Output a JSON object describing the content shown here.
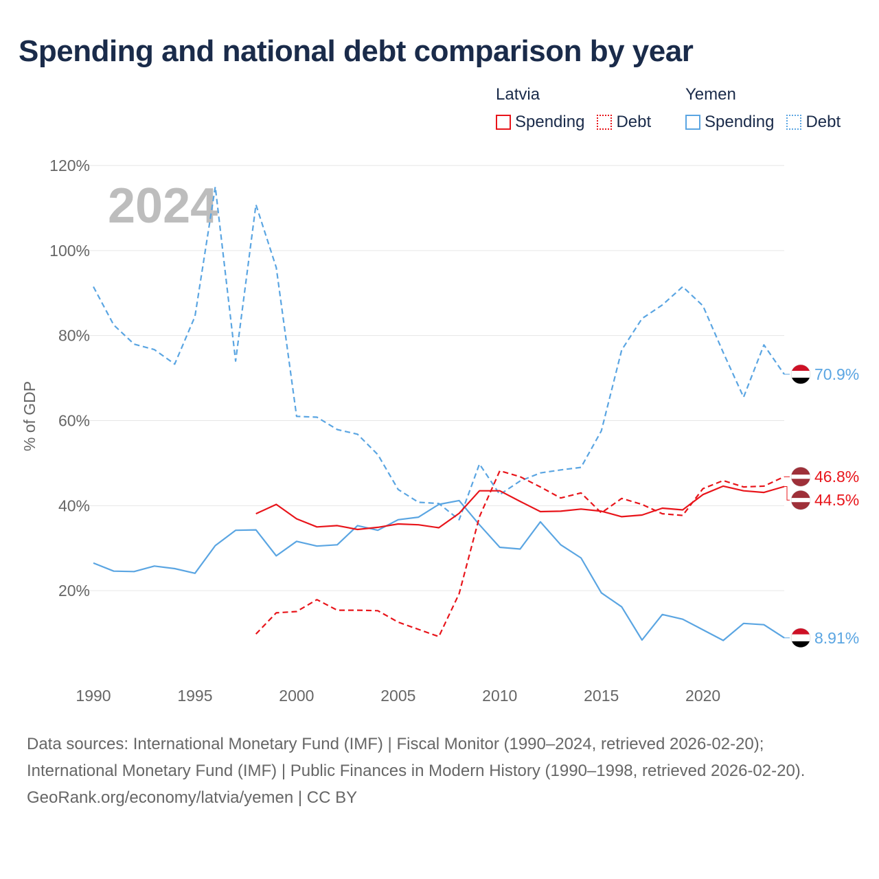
{
  "title": "Spending and national debt comparison by year",
  "legend": [
    {
      "country": "Latvia",
      "items": [
        {
          "label": "Spending",
          "style": "solid",
          "color": "#e8141a"
        },
        {
          "label": "Debt",
          "style": "dotted",
          "color": "#e8141a"
        }
      ]
    },
    {
      "country": "Yemen",
      "items": [
        {
          "label": "Spending",
          "style": "solid",
          "color": "#5aa5e2"
        },
        {
          "label": "Debt",
          "style": "dotted",
          "color": "#5aa5e2"
        }
      ]
    }
  ],
  "colors": {
    "latvia": "#e8141a",
    "yemen": "#5aa5e2",
    "grid": "#e6e6e6",
    "axis_text": "#666666",
    "year_watermark": "#bdbdbd"
  },
  "chart_data": {
    "type": "line",
    "ylabel": "% of GDP",
    "xlabel": "",
    "xlim": [
      1990,
      2024
    ],
    "ylim": [
      0,
      120
    ],
    "y_ticks": [
      20,
      40,
      60,
      80,
      100,
      120
    ],
    "y_tick_labels": [
      "20%",
      "40%",
      "60%",
      "80%",
      "100%",
      "120%"
    ],
    "x_ticks": [
      1990,
      1995,
      2000,
      2005,
      2010,
      2015,
      2020
    ],
    "x_tick_labels": [
      "1990",
      "1995",
      "2000",
      "2005",
      "2010",
      "2015",
      "2020"
    ],
    "year_label": "2024",
    "series": [
      {
        "name": "Yemen Debt",
        "country": "Yemen",
        "style": "dashed",
        "color": "#5aa5e2",
        "x": [
          1990,
          1991,
          1992,
          1993,
          1994,
          1995,
          1996,
          1997,
          1998,
          1999,
          2000,
          2001,
          2002,
          2003,
          2004,
          2005,
          2006,
          2007,
          2008,
          2009,
          2010,
          2011,
          2012,
          2013,
          2014,
          2015,
          2016,
          2017,
          2018,
          2019,
          2020,
          2021,
          2022,
          2023,
          2024
        ],
        "values": [
          91.5,
          82.5,
          78,
          76.7,
          73.3,
          84.5,
          115,
          74,
          110.8,
          96,
          61,
          60.8,
          57.9,
          56.8,
          52,
          43.8,
          40.8,
          40.5,
          36.7,
          49.8,
          42.6,
          45.8,
          47.7,
          48.4,
          49,
          57.6,
          76.6,
          84,
          87.2,
          91.5,
          87,
          76,
          65.5,
          77.8,
          70.9
        ],
        "end_label": "70.9%"
      },
      {
        "name": "Yemen Spending",
        "country": "Yemen",
        "style": "solid",
        "color": "#5aa5e2",
        "x": [
          1990,
          1991,
          1992,
          1993,
          1994,
          1995,
          1996,
          1997,
          1998,
          1999,
          2000,
          2001,
          2002,
          2003,
          2004,
          2005,
          2006,
          2007,
          2008,
          2009,
          2010,
          2011,
          2012,
          2013,
          2014,
          2015,
          2016,
          2017,
          2018,
          2019,
          2020,
          2021,
          2022,
          2023,
          2024
        ],
        "values": [
          26.5,
          24.6,
          24.5,
          25.8,
          25.2,
          24.1,
          30.6,
          34.2,
          34.3,
          28.2,
          31.6,
          30.5,
          30.8,
          35.3,
          34.2,
          36.7,
          37.3,
          40.3,
          41.2,
          35.5,
          30.2,
          29.8,
          36.2,
          30.8,
          27.7,
          19.5,
          16.2,
          8.4,
          14.4,
          13.3,
          10.8,
          8.3,
          12.3,
          12,
          8.91
        ],
        "end_label": "8.91%"
      },
      {
        "name": "Latvia Debt",
        "country": "Latvia",
        "style": "dashed",
        "color": "#e8141a",
        "x": [
          1998,
          1999,
          2000,
          2001,
          2002,
          2003,
          2004,
          2005,
          2006,
          2007,
          2008,
          2009,
          2010,
          2011,
          2012,
          2013,
          2014,
          2015,
          2016,
          2017,
          2018,
          2019,
          2020,
          2021,
          2022,
          2023,
          2024
        ],
        "values": [
          9.8,
          14.8,
          15.1,
          17.9,
          15.4,
          15.4,
          15.3,
          12.6,
          10.9,
          9.2,
          19.3,
          37.4,
          48.2,
          46.8,
          44.4,
          41.8,
          43,
          38.3,
          41.7,
          40.3,
          38.1,
          37.7,
          44,
          45.9,
          44.4,
          44.6,
          46.8
        ],
        "end_label": "46.8%"
      },
      {
        "name": "Latvia Spending",
        "country": "Latvia",
        "style": "solid",
        "color": "#e8141a",
        "x": [
          1998,
          1999,
          2000,
          2001,
          2002,
          2003,
          2004,
          2005,
          2006,
          2007,
          2008,
          2009,
          2010,
          2011,
          2012,
          2013,
          2014,
          2015,
          2016,
          2017,
          2018,
          2019,
          2020,
          2021,
          2022,
          2023,
          2024
        ],
        "values": [
          38.1,
          40.3,
          36.9,
          35,
          35.3,
          34.4,
          34.9,
          35.7,
          35.5,
          34.8,
          38.2,
          43.5,
          43.5,
          41,
          38.6,
          38.7,
          39.2,
          38.7,
          37.4,
          37.8,
          39.4,
          39,
          42.6,
          44.6,
          43.5,
          43.1,
          44.5
        ],
        "end_label": "44.5%"
      }
    ]
  },
  "footer": {
    "sources": "Data sources: International Monetary Fund (IMF) | Fiscal Monitor (1990–2024, retrieved 2026-02-20); International Monetary Fund (IMF) | Public Finances in Modern History (1990–1998, retrieved 2026-02-20).",
    "attribution": "GeoRank.org/economy/latvia/yemen | CC BY"
  }
}
